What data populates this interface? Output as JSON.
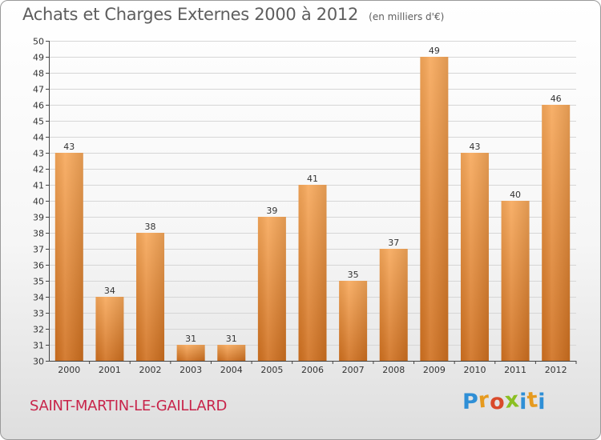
{
  "title": "Achats et Charges Externes 2000 à 2012",
  "unit_note": "(en milliers d'€)",
  "town": "SAINT-MARTIN-LE-GAILLARD",
  "logo": {
    "letters": [
      "P",
      "r",
      "o",
      "x",
      "i",
      "t",
      "i"
    ],
    "colors": [
      "#2f8fd6",
      "#e69a1e",
      "#d94a2b",
      "#8bbf22",
      "#2f8fd6",
      "#e69a1e",
      "#2f8fd6"
    ]
  },
  "colors": {
    "bar_top": "#f7a85a",
    "bar_bottom": "#d0701f",
    "grid": "#d6d6d6",
    "axis": "#444444"
  },
  "chart_data": {
    "type": "bar",
    "title": "Achats et Charges Externes 2000 à 2012",
    "subtitle": "(en milliers d'€)",
    "xlabel": "",
    "ylabel": "",
    "categories": [
      "2000",
      "2001",
      "2002",
      "2003",
      "2004",
      "2005",
      "2006",
      "2007",
      "2008",
      "2009",
      "2010",
      "2011",
      "2012"
    ],
    "values": [
      43,
      34,
      38,
      31,
      31,
      39,
      41,
      35,
      37,
      49,
      43,
      40,
      46
    ],
    "ylim": [
      30,
      50
    ],
    "ytick_step": 1,
    "grid": true,
    "legend": "none"
  }
}
